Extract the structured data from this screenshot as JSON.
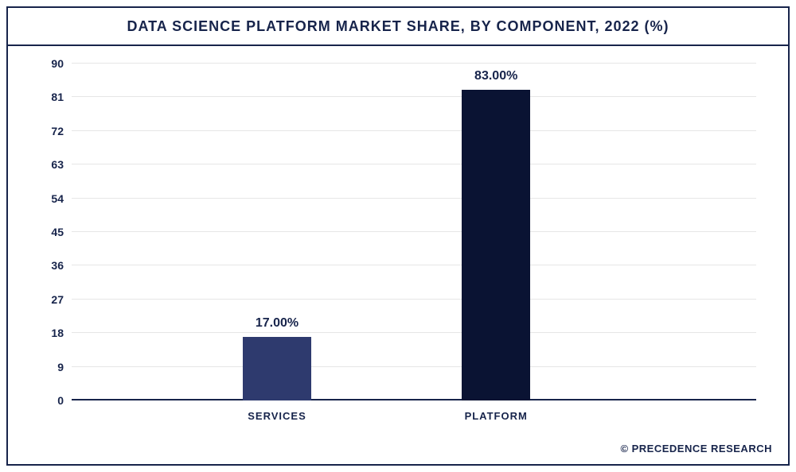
{
  "chart": {
    "type": "bar",
    "title": "DATA SCIENCE PLATFORM MARKET SHARE, BY COMPONENT, 2022 (%)",
    "title_fontsize": 18,
    "title_color": "#17244b",
    "background_color": "#ffffff",
    "border_color": "#17244b",
    "grid_color": "#e6e6e6",
    "axis_color": "#17244b",
    "ylim": [
      0,
      90
    ],
    "ytick_step": 9,
    "yticks": [
      0,
      9,
      18,
      27,
      36,
      45,
      54,
      63,
      72,
      81,
      90
    ],
    "label_fontsize": 14,
    "label_color": "#17244b",
    "bar_width_pct": 10,
    "categories": [
      "SERVICES",
      "PLATFORM"
    ],
    "values": [
      17.0,
      83.0
    ],
    "value_labels": [
      "17.00%",
      "83.00%"
    ],
    "bar_colors": [
      "#2e3a6e",
      "#0a1333"
    ],
    "bar_positions_pct": [
      25,
      57
    ],
    "value_label_fontsize": 16,
    "category_label_fontsize": 13
  },
  "attribution": "© PRECEDENCE RESEARCH"
}
